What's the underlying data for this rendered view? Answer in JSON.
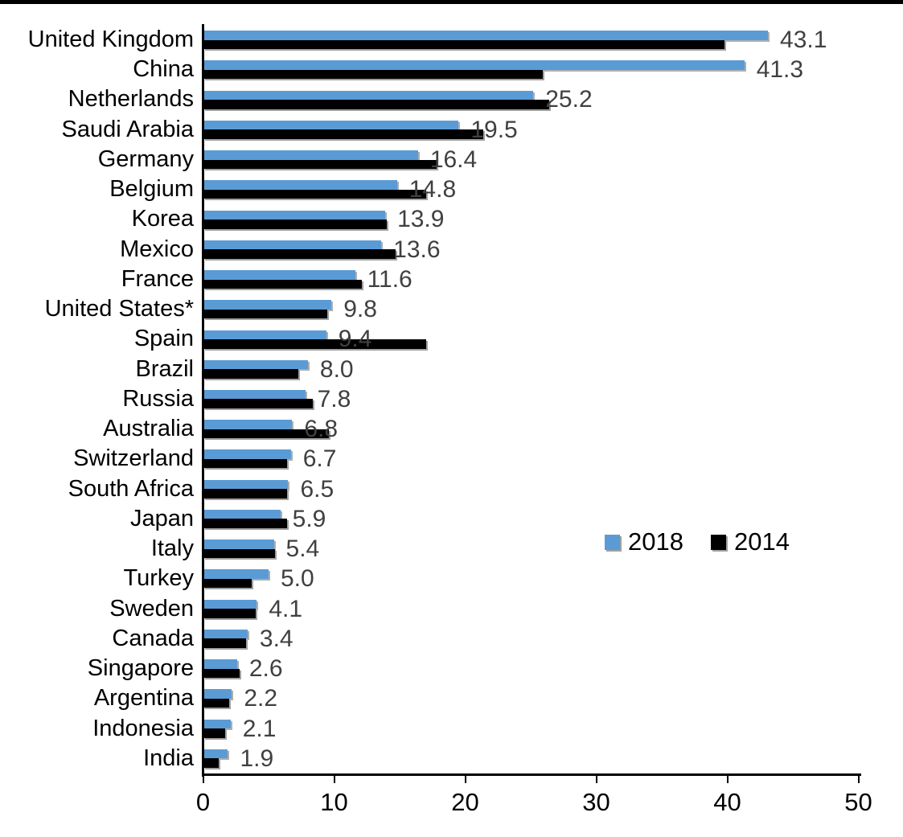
{
  "chart_data": {
    "type": "bar",
    "orientation": "horizontal",
    "title": "",
    "xlabel": "",
    "ylabel": "",
    "xlim": [
      0,
      50
    ],
    "x_ticks": [
      0,
      10,
      20,
      30,
      40,
      50
    ],
    "grid": false,
    "legend_position": "middle-right",
    "value_labels": "2018 series, one decimal, outside end",
    "value_label_color": "#404040",
    "axis_color": "#000000",
    "categories": [
      "United Kingdom",
      "China",
      "Netherlands",
      "Saudi Arabia",
      "Germany",
      "Belgium",
      "Korea",
      "Mexico",
      "France",
      "United States*",
      "Spain",
      "Brazil",
      "Russia",
      "Australia",
      "Switzerland",
      "South Africa",
      "Japan",
      "Italy",
      "Turkey",
      "Sweden",
      "Canada",
      "Singapore",
      "Argentina",
      "Indonesia",
      "India"
    ],
    "series": [
      {
        "name": "2018",
        "color": "#5B9BD5",
        "values": [
          43.1,
          41.3,
          25.2,
          19.5,
          16.4,
          14.8,
          13.9,
          13.6,
          11.6,
          9.8,
          9.4,
          8.0,
          7.8,
          6.8,
          6.7,
          6.5,
          5.9,
          5.4,
          5.0,
          4.1,
          3.4,
          2.6,
          2.2,
          2.1,
          1.9
        ]
      },
      {
        "name": "2014",
        "color": "#000000",
        "values": [
          39.8,
          25.9,
          26.4,
          21.4,
          17.8,
          17.0,
          14.0,
          14.7,
          12.1,
          9.5,
          17.0,
          7.3,
          8.4,
          9.6,
          6.4,
          6.4,
          6.4,
          5.5,
          3.7,
          4.0,
          3.3,
          2.8,
          2.0,
          1.7,
          1.2
        ]
      }
    ]
  }
}
